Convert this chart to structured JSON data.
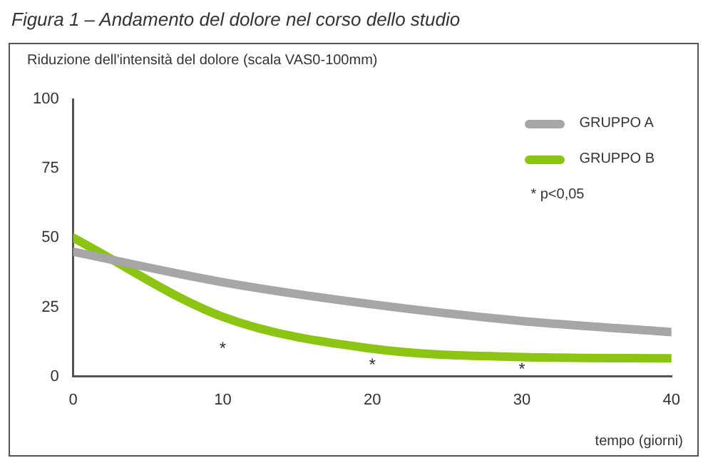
{
  "chart_data": {
    "type": "line",
    "title": "Figura 1 – Andamento del dolore nel corso dello studio",
    "ylabel": "Riduzione dell'intensità del dolore (scala VAS0-100mm)",
    "xlabel": "tempo (giorni)",
    "x": [
      0,
      10,
      20,
      30,
      40
    ],
    "series": [
      {
        "name": "GRUPPO A",
        "color": "#a6a6a6",
        "values": [
          45,
          34,
          26,
          20,
          16
        ]
      },
      {
        "name": "GRUPPO B",
        "color": "#8cc414",
        "values": [
          50,
          21.5,
          10,
          7,
          6.5
        ]
      }
    ],
    "xlim": [
      0,
      40
    ],
    "xticks": [
      0,
      10,
      20,
      30,
      40
    ],
    "ylim": [
      0,
      100
    ],
    "yticks": [
      0,
      25,
      50,
      75,
      100
    ],
    "grid": false,
    "legend": "top right",
    "marker": "none",
    "line_style": "solid",
    "annotations": [
      {
        "text": "*",
        "x": 10,
        "y": 21.5
      },
      {
        "text": "*",
        "x": 20,
        "y": 10
      },
      {
        "text": "*",
        "x": 30,
        "y": 7
      },
      "* p<0,05"
    ]
  }
}
